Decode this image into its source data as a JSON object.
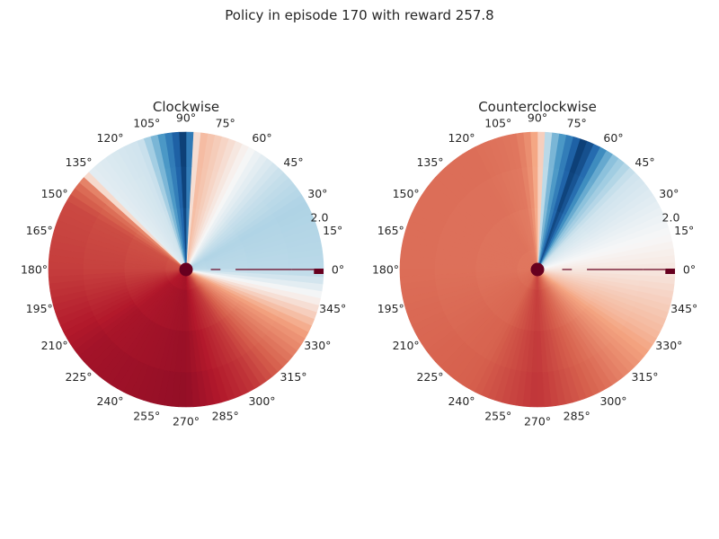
{
  "figure": {
    "title": "Policy in episode 170 with reward 257.8"
  },
  "chart_data": [
    {
      "type": "heatmap",
      "projection": "polar",
      "title": "Clockwise",
      "colormap": "RdBu_r",
      "theta_tick_labels": [
        "0°",
        "15°",
        "30°",
        "45°",
        "60°",
        "75°",
        "90°",
        "105°",
        "120°",
        "135°",
        "150°",
        "165°",
        "180°",
        "195°",
        "210°",
        "225°",
        "240°",
        "255°",
        "270°",
        "285°",
        "300°",
        "315°",
        "330°",
        "345°"
      ],
      "theta_ticks_deg": [
        0,
        15,
        30,
        45,
        60,
        75,
        90,
        105,
        120,
        135,
        150,
        165,
        180,
        195,
        210,
        225,
        240,
        255,
        270,
        285,
        300,
        315,
        330,
        345
      ],
      "r_tick_label": "2.0",
      "r_tick_angle_deg": 22.5,
      "grid": false,
      "profile_angles_deg": [
        0,
        30,
        45,
        60,
        75,
        85,
        90,
        95,
        100,
        105,
        110,
        120,
        135,
        140,
        150,
        180,
        220,
        270,
        300,
        330,
        345,
        360
      ],
      "profile_values": [
        -0.15,
        -0.18,
        -0.12,
        -0.02,
        0.12,
        0.2,
        -1.0,
        -0.75,
        -0.5,
        -0.25,
        -0.1,
        -0.08,
        -0.05,
        0.42,
        0.58,
        0.62,
        0.8,
        0.85,
        0.65,
        0.3,
        0.05,
        -0.15
      ],
      "value_range": [
        -1,
        1
      ]
    },
    {
      "type": "heatmap",
      "projection": "polar",
      "title": "Counterclockwise",
      "colormap": "RdBu_r",
      "theta_tick_labels": [
        "0°",
        "15°",
        "30°",
        "45°",
        "60°",
        "75°",
        "90°",
        "105°",
        "120°",
        "135°",
        "150°",
        "165°",
        "180°",
        "195°",
        "210°",
        "225°",
        "240°",
        "255°",
        "270°",
        "285°",
        "300°",
        "315°",
        "330°",
        "345°"
      ],
      "theta_ticks_deg": [
        0,
        15,
        30,
        45,
        60,
        75,
        90,
        105,
        120,
        135,
        150,
        165,
        180,
        195,
        210,
        225,
        240,
        255,
        270,
        285,
        300,
        315,
        330,
        345
      ],
      "r_tick_label": "2.0",
      "r_tick_angle_deg": 22.5,
      "grid": false,
      "profile_angles_deg": [
        0,
        15,
        30,
        45,
        55,
        60,
        65,
        70,
        75,
        80,
        85,
        88,
        90,
        95,
        100,
        120,
        180,
        240,
        270,
        300,
        330,
        360
      ],
      "profile_values": [
        0.05,
        0.0,
        -0.05,
        -0.1,
        -0.25,
        -0.45,
        -0.75,
        -0.95,
        -0.7,
        -0.45,
        -0.2,
        0.1,
        0.2,
        0.35,
        0.42,
        0.45,
        0.45,
        0.5,
        0.65,
        0.45,
        0.2,
        0.05
      ],
      "value_range": [
        -1,
        1
      ]
    }
  ],
  "colors": {
    "text": "#262626",
    "marker": "#67001f",
    "background": "#ffffff"
  }
}
